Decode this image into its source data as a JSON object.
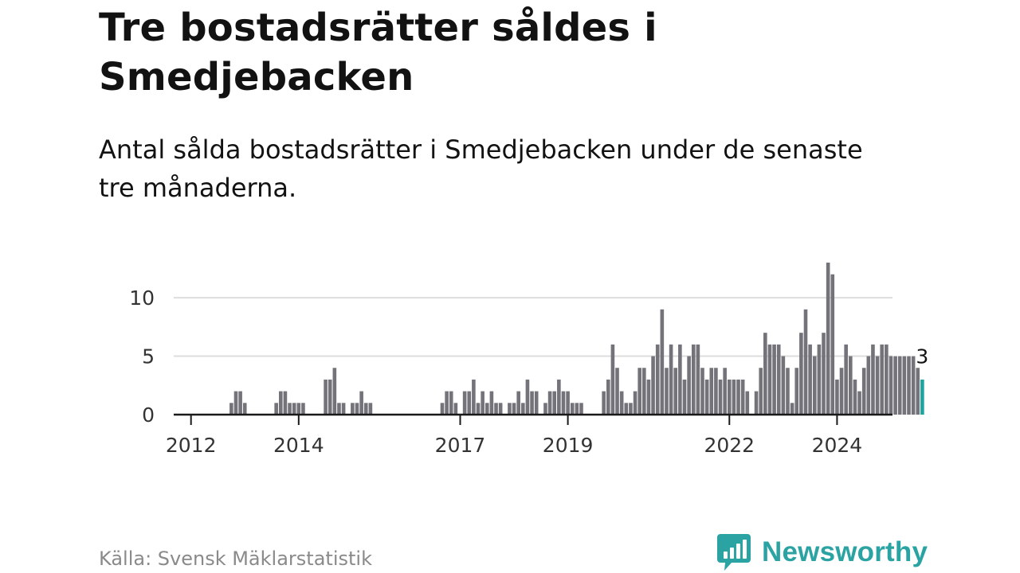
{
  "title": "Tre bostadsrätter såldes i Smedjebacken",
  "subtitle": "Antal sålda bostadsrätter i Smedjebacken under de senaste tre månaderna.",
  "source": "Källa: Svensk Mäklarstatistik",
  "brand": "Newsworthy",
  "colors": {
    "bar": "#747379",
    "highlight": "#1fa3a0",
    "grid": "#dddddd",
    "axis": "#1a1a1a",
    "brand": "#2ba3a3"
  },
  "chart_data": {
    "type": "bar",
    "title": "Tre bostadsrätter såldes i Smedjebacken",
    "xlabel": "",
    "ylabel": "",
    "ylim": [
      0,
      13
    ],
    "grid": true,
    "yticks": [
      0,
      5,
      10
    ],
    "xtick_labels": [
      "2012",
      "2014",
      "2017",
      "2019",
      "2022",
      "2024"
    ],
    "start_period": "2011-10",
    "frequency": "monthly",
    "highlight_label": "3",
    "values": [
      0,
      0,
      0,
      0,
      0,
      0,
      0,
      0,
      0,
      0,
      0,
      0,
      1,
      2,
      2,
      1,
      0,
      0,
      0,
      0,
      0,
      0,
      1,
      2,
      2,
      1,
      1,
      1,
      1,
      0,
      0,
      0,
      0,
      3,
      3,
      4,
      1,
      1,
      0,
      1,
      1,
      2,
      1,
      1,
      0,
      0,
      0,
      0,
      0,
      0,
      0,
      0,
      0,
      0,
      0,
      0,
      0,
      0,
      0,
      1,
      2,
      2,
      1,
      0,
      2,
      2,
      3,
      1,
      2,
      1,
      2,
      1,
      1,
      0,
      1,
      1,
      2,
      1,
      3,
      2,
      2,
      0,
      1,
      2,
      2,
      3,
      2,
      2,
      1,
      1,
      1,
      0,
      0,
      0,
      0,
      2,
      3,
      6,
      4,
      2,
      1,
      1,
      2,
      4,
      4,
      3,
      5,
      6,
      9,
      4,
      6,
      4,
      6,
      3,
      5,
      6,
      6,
      4,
      3,
      4,
      4,
      3,
      4,
      3,
      3,
      3,
      3,
      2,
      0,
      2,
      4,
      7,
      6,
      6,
      6,
      5,
      4,
      1,
      4,
      7,
      9,
      6,
      5,
      6,
      7,
      13,
      12,
      3,
      4,
      6,
      5,
      3,
      2,
      4,
      5,
      6,
      5,
      6,
      6,
      5,
      5,
      5,
      5,
      5,
      5,
      4,
      3
    ]
  }
}
